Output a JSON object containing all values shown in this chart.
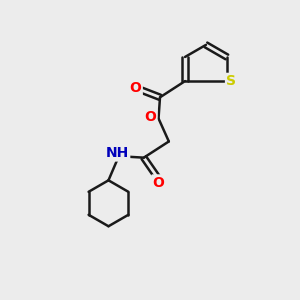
{
  "background_color": "#ececec",
  "bond_color": "#1a1a1a",
  "atom_colors": {
    "O": "#ff0000",
    "N": "#0000bb",
    "S": "#cccc00",
    "H": "#666666",
    "C": "#1a1a1a"
  },
  "figsize": [
    3.0,
    3.0
  ],
  "dpi": 100,
  "lw": 1.8,
  "fontsize": 10
}
